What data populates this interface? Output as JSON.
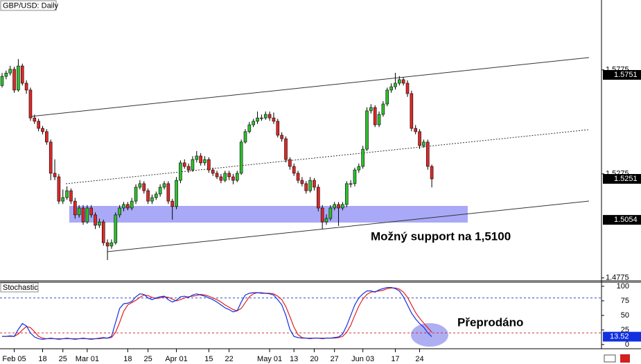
{
  "chart_data": [
    {
      "type": "candlestick",
      "title": "GBP/USD: Daily",
      "categories": [
        null,
        null,
        null,
        "Feb 05",
        null,
        null,
        null,
        null,
        null,
        null,
        "18",
        null,
        null,
        null,
        null,
        "25",
        null,
        null,
        null,
        null,
        null,
        "Mar 01",
        null,
        null,
        null,
        null,
        null,
        null,
        null,
        null,
        null,
        "18",
        null,
        null,
        null,
        null,
        "25",
        null,
        null,
        null,
        null,
        null,
        null,
        "Apr 01",
        null,
        null,
        null,
        null,
        null,
        null,
        null,
        "15",
        null,
        null,
        null,
        null,
        "22",
        null,
        null,
        null,
        null,
        null,
        null,
        null,
        null,
        null,
        "May 01",
        null,
        null,
        null,
        null,
        null,
        "13",
        null,
        null,
        null,
        null,
        "20",
        null,
        null,
        null,
        null,
        "27",
        null,
        null,
        null,
        null,
        null,
        null,
        "Jun 03",
        null,
        null,
        null,
        null,
        null,
        null,
        null,
        "17",
        null,
        null,
        null,
        null,
        null,
        "24",
        null,
        null,
        null
      ],
      "open": [
        1.57,
        1.5744,
        1.576,
        1.5778,
        1.5678,
        1.5794,
        1.5711,
        1.5678,
        1.5544,
        1.5528,
        1.5494,
        1.5478,
        1.5428,
        1.5278,
        1.5261,
        1.5144,
        1.5161,
        1.5194,
        1.5144,
        1.5078,
        1.5111,
        1.5044,
        1.5111,
        1.5078,
        1.5028,
        1.5044,
        1.4944,
        1.4928,
        1.4944,
        1.5078,
        1.5111,
        1.5128,
        1.5111,
        1.5144,
        1.5211,
        1.5228,
        1.5194,
        1.5144,
        1.5161,
        1.5178,
        1.5211,
        1.5228,
        1.5144,
        1.5118,
        1.5244,
        1.5328,
        1.5311,
        1.5294,
        1.5344,
        1.5361,
        1.5328,
        1.5344,
        1.5294,
        1.5278,
        1.5261,
        1.5244,
        1.5278,
        1.5261,
        1.5244,
        1.5278,
        1.5428,
        1.5478,
        1.5511,
        1.5528,
        1.5544,
        1.5544,
        1.5561,
        1.5544,
        1.5528,
        1.5461,
        1.5444,
        1.5344,
        1.5311,
        1.5278,
        1.5244,
        1.5228,
        1.5194,
        1.5244,
        1.5211,
        1.5111,
        1.5044,
        1.5061,
        1.5111,
        1.5128,
        1.5111,
        1.5128,
        1.5228,
        1.5228,
        1.5294,
        1.5311,
        1.5394,
        1.5578,
        1.5594,
        1.5511,
        1.5561,
        1.5611,
        1.5678,
        1.5694,
        1.5711,
        1.5728,
        1.5711,
        1.5661,
        1.5494,
        1.5478,
        1.5411,
        1.5428,
        1.5311
      ],
      "high": [
        1.576,
        1.5772,
        1.5795,
        1.579,
        1.5827,
        1.5805,
        1.5725,
        1.569,
        1.556,
        1.554,
        1.5505,
        1.549,
        1.544,
        1.5345,
        1.5275,
        1.52,
        1.5215,
        1.5205,
        1.516,
        1.5125,
        1.5125,
        1.5125,
        1.5125,
        1.509,
        1.506,
        1.5055,
        1.496,
        1.496,
        1.509,
        1.5125,
        1.514,
        1.514,
        1.516,
        1.5225,
        1.5245,
        1.524,
        1.5205,
        1.5175,
        1.519,
        1.5225,
        1.524,
        1.524,
        1.5155,
        1.526,
        1.534,
        1.5345,
        1.5325,
        1.536,
        1.5385,
        1.5375,
        1.536,
        1.5355,
        1.5305,
        1.529,
        1.5275,
        1.529,
        1.529,
        1.5275,
        1.529,
        1.544,
        1.549,
        1.5525,
        1.554,
        1.5575,
        1.556,
        1.5575,
        1.5575,
        1.557,
        1.554,
        1.5475,
        1.5455,
        1.5355,
        1.5325,
        1.529,
        1.526,
        1.524,
        1.526,
        1.5255,
        1.5225,
        1.5125,
        1.508,
        1.5125,
        1.514,
        1.514,
        1.514,
        1.524,
        1.5245,
        1.5305,
        1.5325,
        1.541,
        1.5595,
        1.561,
        1.5605,
        1.5575,
        1.5625,
        1.569,
        1.571,
        1.5761,
        1.5745,
        1.574,
        1.5725,
        1.5675,
        1.551,
        1.549,
        1.544,
        1.544,
        1.532
      ],
      "low": [
        1.569,
        1.573,
        1.5748,
        1.5665,
        1.567,
        1.57,
        1.566,
        1.553,
        1.5515,
        1.548,
        1.5465,
        1.5415,
        1.5245,
        1.5245,
        1.513,
        1.513,
        1.515,
        1.513,
        1.506,
        1.5065,
        1.503,
        1.5035,
        1.5065,
        1.501,
        1.5015,
        1.493,
        1.4861,
        1.4915,
        1.4935,
        1.5065,
        1.5095,
        1.51,
        1.51,
        1.513,
        1.52,
        1.518,
        1.513,
        1.513,
        1.515,
        1.5165,
        1.52,
        1.513,
        1.5055,
        1.5105,
        1.523,
        1.53,
        1.528,
        1.5285,
        1.533,
        1.5315,
        1.5315,
        1.528,
        1.5265,
        1.525,
        1.523,
        1.5235,
        1.5245,
        1.5225,
        1.5235,
        1.527,
        1.542,
        1.547,
        1.55,
        1.5515,
        1.553,
        1.5535,
        1.553,
        1.5515,
        1.545,
        1.543,
        1.533,
        1.5295,
        1.5265,
        1.523,
        1.5215,
        1.518,
        1.5185,
        1.5195,
        1.5095,
        1.5011,
        1.503,
        1.505,
        1.51,
        1.5025,
        1.51,
        1.5115,
        1.521,
        1.5215,
        1.528,
        1.53,
        1.5385,
        1.5565,
        1.55,
        1.55,
        1.555,
        1.56,
        1.5665,
        1.568,
        1.57,
        1.57,
        1.5645,
        1.548,
        1.5465,
        1.5395,
        1.54,
        1.5295,
        1.521
      ],
      "close": [
        1.5744,
        1.576,
        1.5778,
        1.5678,
        1.5794,
        1.5711,
        1.5678,
        1.5544,
        1.5528,
        1.5494,
        1.5478,
        1.5428,
        1.5278,
        1.5261,
        1.5144,
        1.5161,
        1.5194,
        1.5144,
        1.5078,
        1.5111,
        1.5044,
        1.5111,
        1.5078,
        1.5028,
        1.5044,
        1.4944,
        1.4928,
        1.4944,
        1.5078,
        1.5111,
        1.5128,
        1.5111,
        1.5144,
        1.5211,
        1.5228,
        1.5194,
        1.5144,
        1.5161,
        1.5178,
        1.5211,
        1.5228,
        1.5144,
        1.5118,
        1.5244,
        1.5328,
        1.5311,
        1.5294,
        1.5344,
        1.5361,
        1.5328,
        1.5344,
        1.5294,
        1.5278,
        1.5261,
        1.5244,
        1.5278,
        1.5261,
        1.5244,
        1.5278,
        1.5428,
        1.5478,
        1.5511,
        1.5528,
        1.5544,
        1.5544,
        1.5561,
        1.5544,
        1.5528,
        1.5461,
        1.5444,
        1.5344,
        1.5311,
        1.5278,
        1.5244,
        1.5228,
        1.5194,
        1.5244,
        1.5211,
        1.5111,
        1.5044,
        1.5061,
        1.5111,
        1.5128,
        1.5111,
        1.5128,
        1.5228,
        1.5228,
        1.5294,
        1.5311,
        1.5394,
        1.5578,
        1.5594,
        1.5511,
        1.5561,
        1.5611,
        1.5678,
        1.5694,
        1.5711,
        1.5728,
        1.5711,
        1.5661,
        1.5494,
        1.5478,
        1.5411,
        1.5428,
        1.5311,
        1.5251
      ],
      "up_color": "#2ec02e",
      "down_color": "#e02828",
      "ylim": [
        1.4761,
        1.6111
      ],
      "yticks": [
        1.4775,
        1.5275,
        1.5775
      ],
      "price_tags": [
        1.5751,
        1.5251,
        1.5054
      ],
      "annotations": [
        "Možný support na 1,5100"
      ]
    },
    {
      "type": "line",
      "title": "Stochastic",
      "series": [
        {
          "color": "#1030e0",
          "values": [
            14,
            14,
            15,
            14,
            26,
            36,
            32,
            20,
            13,
            10,
            9,
            10,
            11,
            10,
            9,
            10,
            11,
            10,
            9,
            10,
            11,
            10,
            9,
            10,
            11,
            12,
            11,
            14,
            38,
            62,
            70,
            71,
            74,
            82,
            87,
            86,
            80,
            77,
            80,
            82,
            83,
            77,
            73,
            76,
            82,
            83,
            81,
            85,
            87,
            85,
            83,
            80,
            77,
            73,
            68,
            63,
            60,
            56,
            58,
            73,
            85,
            88,
            89,
            89,
            88,
            88,
            87,
            85,
            77,
            68,
            50,
            26,
            14,
            12,
            11,
            11,
            10,
            11,
            11,
            10,
            11,
            11,
            12,
            13,
            18,
            32,
            50,
            68,
            80,
            87,
            92,
            92,
            90,
            94,
            96,
            98,
            98,
            96,
            92,
            82,
            68,
            54,
            44,
            36,
            30,
            20,
            13.52
          ]
        },
        {
          "color": "#e02020",
          "values": [
            14,
            14,
            14,
            14,
            18,
            25,
            31,
            29,
            22,
            14,
            11,
            10,
            10,
            10,
            10,
            10,
            10,
            10,
            10,
            10,
            10,
            10,
            10,
            10,
            10,
            11,
            11,
            12,
            21,
            38,
            57,
            68,
            72,
            76,
            81,
            85,
            84,
            81,
            79,
            80,
            82,
            81,
            78,
            75,
            77,
            80,
            82,
            83,
            84,
            86,
            85,
            83,
            80,
            77,
            73,
            68,
            64,
            60,
            58,
            62,
            72,
            82,
            87,
            89,
            89,
            88,
            88,
            87,
            83,
            77,
            65,
            48,
            30,
            17,
            12,
            11,
            11,
            11,
            11,
            11,
            11,
            11,
            11,
            12,
            14,
            21,
            33,
            50,
            66,
            78,
            86,
            90,
            91,
            92,
            93,
            96,
            97,
            97,
            95,
            90,
            81,
            68,
            55,
            45,
            37,
            29,
            21
          ]
        }
      ],
      "levels": [
        {
          "value": 80,
          "color": "#3048d0"
        },
        {
          "value": 20,
          "color": "#d03030"
        }
      ],
      "ylim": [
        -6,
        107
      ],
      "yticks": [
        0,
        25,
        50,
        75,
        100
      ],
      "annotations": [
        "Přeprodáno"
      ]
    }
  ]
}
